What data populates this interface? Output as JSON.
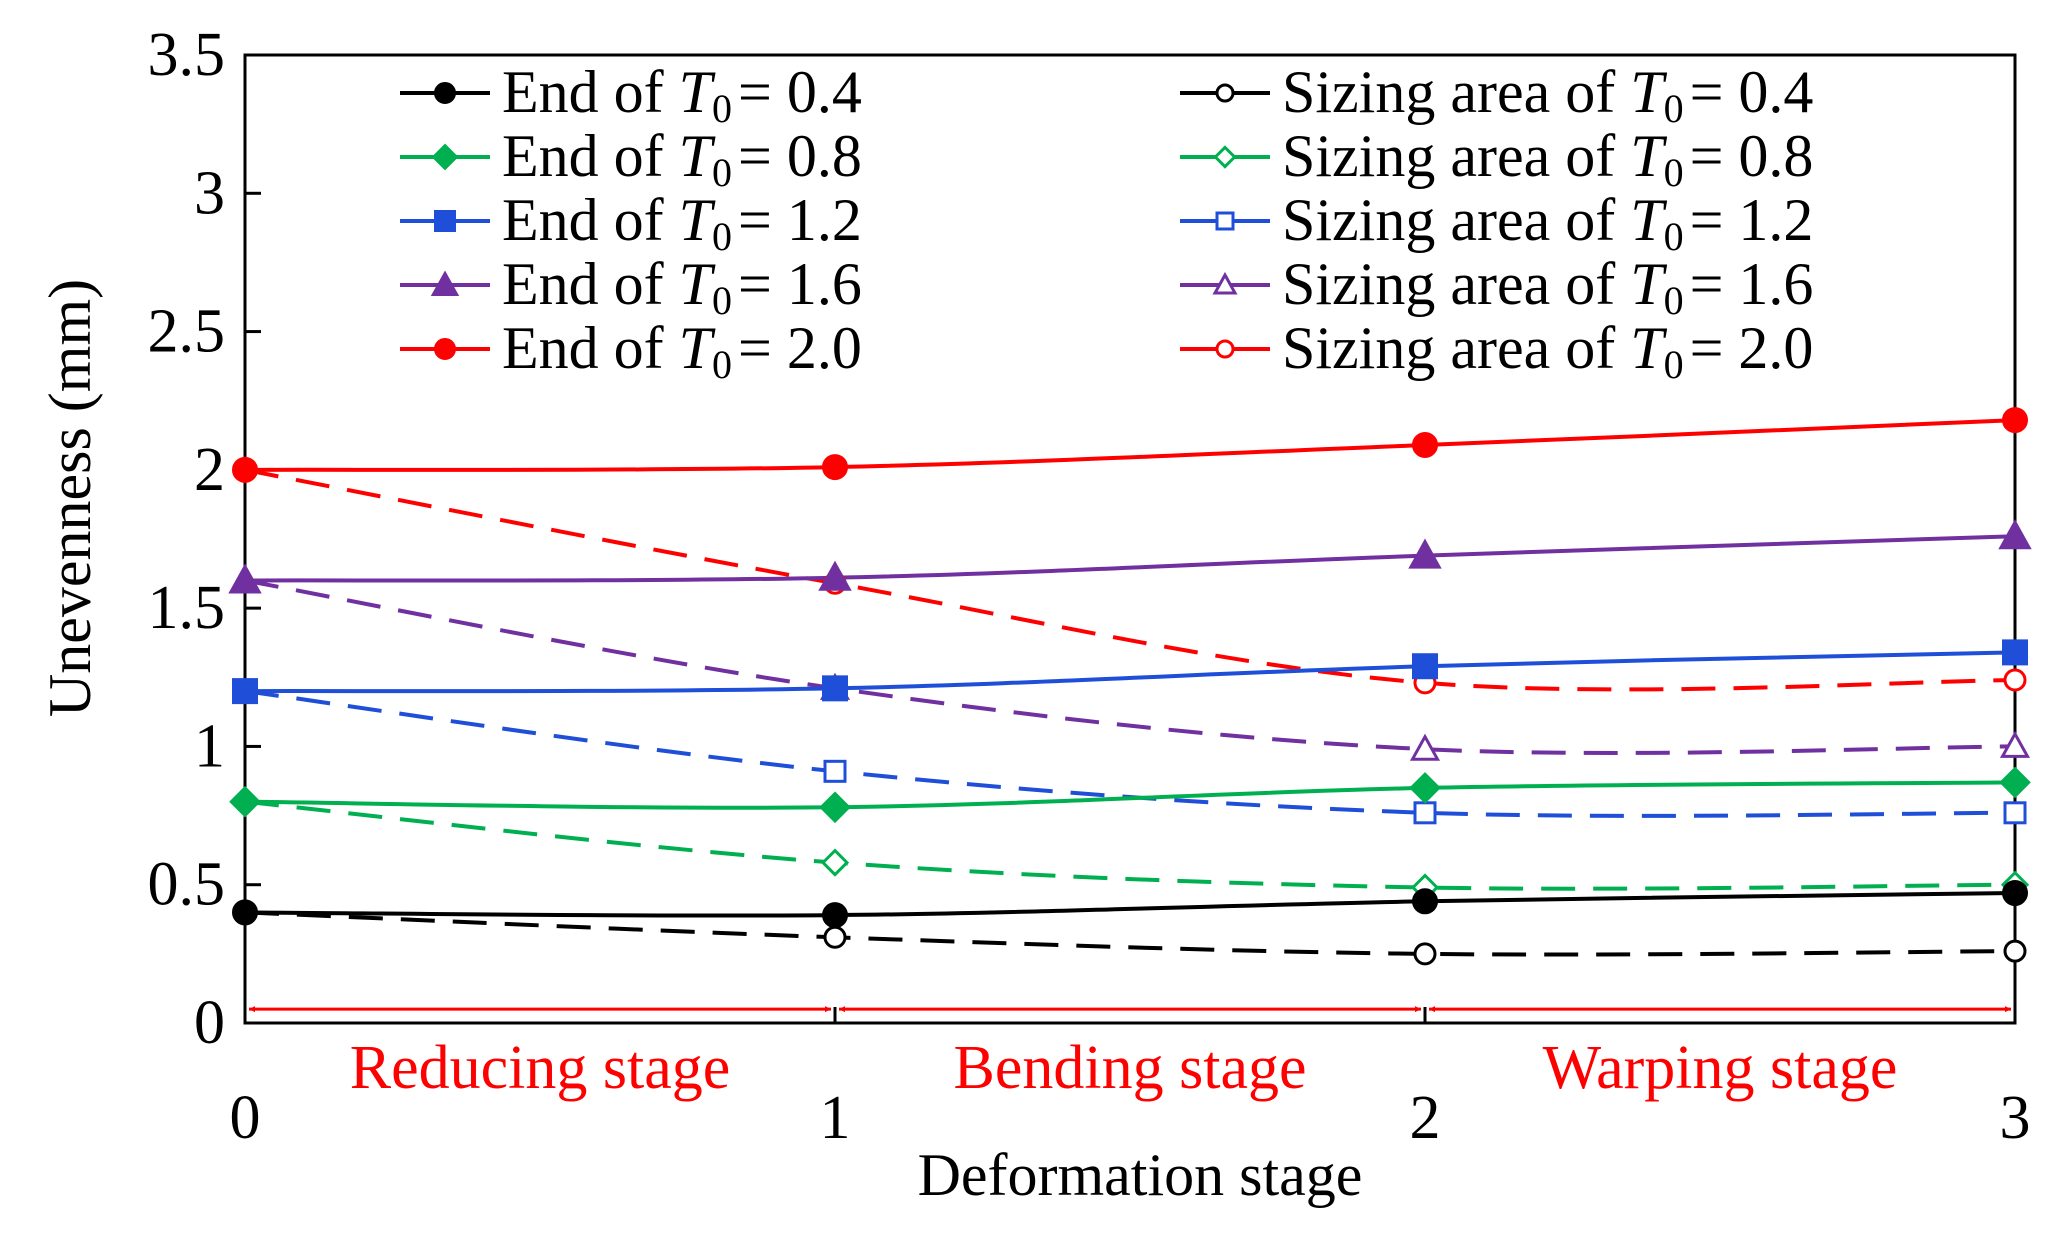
{
  "chart_data": {
    "type": "line",
    "title": "",
    "xlabel": "Deformation stage",
    "ylabel": "Unevenness (mm)",
    "x": [
      0,
      1,
      2,
      3
    ],
    "x_tick_labels": [
      "0",
      "1",
      "2",
      "3"
    ],
    "y_tick_labels": [
      "0",
      "0.5",
      "1",
      "1.5",
      "2",
      "2.5",
      "3",
      "3.5"
    ],
    "y_ticks": [
      0,
      0.5,
      1,
      1.5,
      2,
      2.5,
      3,
      3.5
    ],
    "xlim": [
      0,
      3
    ],
    "ylim": [
      0,
      3.5
    ],
    "grid": false,
    "legend_position": "top",
    "series": [
      {
        "name": "End of T0 = 0.4",
        "prefix": "End of ",
        "var": "T",
        "sub": "0",
        "value_label": "= 0.4",
        "color": "#000000",
        "dash": "solid",
        "marker": "circle",
        "filled": true,
        "values": [
          0.4,
          0.39,
          0.44,
          0.47
        ]
      },
      {
        "name": "End of T0 = 0.8",
        "prefix": "End of ",
        "var": "T",
        "sub": "0",
        "value_label": "= 0.8",
        "color": "#00b050",
        "dash": "solid",
        "marker": "diamond",
        "filled": true,
        "values": [
          0.8,
          0.78,
          0.85,
          0.87
        ]
      },
      {
        "name": "End of T0 = 1.2",
        "prefix": "End of ",
        "var": "T",
        "sub": "0",
        "value_label": "= 1.2",
        "color": "#1f4fd8",
        "dash": "solid",
        "marker": "square",
        "filled": true,
        "values": [
          1.2,
          1.21,
          1.29,
          1.34
        ]
      },
      {
        "name": "End of T0 = 1.6",
        "prefix": "End of ",
        "var": "T",
        "sub": "0",
        "value_label": "= 1.6",
        "color": "#7030a0",
        "dash": "solid",
        "marker": "triangle",
        "filled": true,
        "values": [
          1.6,
          1.61,
          1.69,
          1.76
        ]
      },
      {
        "name": "End of T0 = 2.0",
        "prefix": "End of ",
        "var": "T",
        "sub": "0",
        "value_label": "= 2.0",
        "color": "#ff0000",
        "dash": "solid",
        "marker": "circle",
        "filled": true,
        "values": [
          2.0,
          2.01,
          2.09,
          2.18
        ]
      },
      {
        "name": "Sizing area of T0 = 0.4",
        "prefix": "Sizing area of ",
        "var": "T",
        "sub": "0",
        "value_label": "= 0.4",
        "color": "#000000",
        "dash": "dashed",
        "marker": "circle",
        "filled": false,
        "values": [
          0.4,
          0.31,
          0.25,
          0.26
        ]
      },
      {
        "name": "Sizing area of T0 = 0.8",
        "prefix": "Sizing area of ",
        "var": "T",
        "sub": "0",
        "value_label": "= 0.8",
        "color": "#00b050",
        "dash": "dashed",
        "marker": "diamond",
        "filled": false,
        "values": [
          0.8,
          0.58,
          0.49,
          0.5
        ]
      },
      {
        "name": "Sizing area of T0 = 1.2",
        "prefix": "Sizing area of ",
        "var": "T",
        "sub": "0",
        "value_label": "= 1.2",
        "color": "#1f4fd8",
        "dash": "dashed",
        "marker": "square",
        "filled": false,
        "values": [
          1.2,
          0.91,
          0.76,
          0.76
        ]
      },
      {
        "name": "Sizing area of T0 = 1.6",
        "prefix": "Sizing area of ",
        "var": "T",
        "sub": "0",
        "value_label": "= 1.6",
        "color": "#7030a0",
        "dash": "dashed",
        "marker": "triangle",
        "filled": false,
        "values": [
          1.6,
          1.21,
          0.99,
          1.0
        ]
      },
      {
        "name": "Sizing area of T0 = 2.0",
        "prefix": "Sizing area of ",
        "var": "T",
        "sub": "0",
        "value_label": "= 2.0",
        "color": "#ff0000",
        "dash": "dashed",
        "marker": "circle",
        "filled": false,
        "values": [
          2.0,
          1.59,
          1.23,
          1.24
        ]
      }
    ],
    "annotations": [
      {
        "label": "Reducing stage",
        "from": 0,
        "to": 1,
        "color": "#ff0000"
      },
      {
        "label": "Bending stage",
        "from": 1,
        "to": 2,
        "color": "#ff0000"
      },
      {
        "label": "Warping stage",
        "from": 2,
        "to": 3,
        "color": "#ff0000"
      }
    ]
  }
}
